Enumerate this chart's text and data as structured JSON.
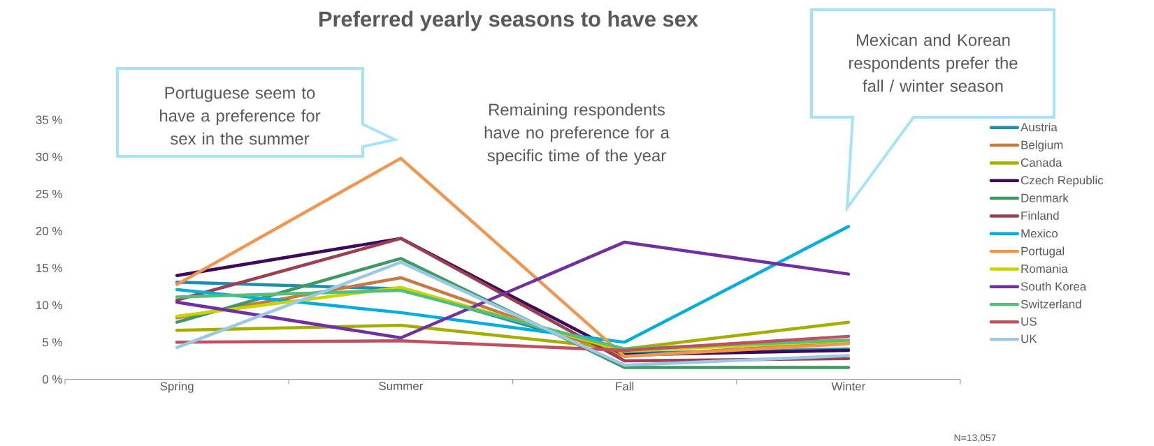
{
  "chart_data": {
    "type": "line",
    "title": "Preferred yearly seasons to have sex",
    "categories": [
      "Spring",
      "Summer",
      "Fall",
      "Winter"
    ],
    "ylim": [
      0,
      35
    ],
    "yticks": [
      {
        "value": 0,
        "label": "0 %"
      },
      {
        "value": 5,
        "label": "5 %"
      },
      {
        "value": 10,
        "label": "10 %"
      },
      {
        "value": 15,
        "label": "15 %"
      },
      {
        "value": 20,
        "label": "20 %"
      },
      {
        "value": 25,
        "label": "25 %"
      },
      {
        "value": 30,
        "label": "30 %"
      },
      {
        "value": 35,
        "label": "35 %"
      }
    ],
    "legend": "right",
    "grid": false,
    "marker": "none",
    "line_style": "solid",
    "annotations": [
      "Portuguese seem to have a preference for sex in the summer",
      "Remaining respondents have no preference for a specific time of the year",
      "Mexican and Korean respondents prefer the fall / winter season",
      "N=13,057"
    ],
    "series": [
      {
        "name": "Austria",
        "color": "#1f8fb0",
        "values": [
          13.1,
          12.2,
          3.5,
          4.1
        ]
      },
      {
        "name": "Belgium",
        "color": "#c87941",
        "values": [
          8.3,
          13.7,
          3.1,
          5.0
        ]
      },
      {
        "name": "Canada",
        "color": "#a5ad00",
        "values": [
          6.6,
          7.3,
          4.1,
          7.7
        ]
      },
      {
        "name": "Czech Republic",
        "color": "#3d0a5a",
        "values": [
          14.0,
          19.0,
          3.3,
          3.9
        ]
      },
      {
        "name": "Denmark",
        "color": "#3e9a63",
        "values": [
          7.7,
          16.3,
          1.6,
          1.6
        ]
      },
      {
        "name": "Finland",
        "color": "#9a4050",
        "values": [
          10.7,
          19.0,
          2.5,
          2.8
        ]
      },
      {
        "name": "Mexico",
        "color": "#00aedc",
        "values": [
          12.1,
          9.0,
          5.0,
          20.6
        ]
      },
      {
        "name": "Portugal",
        "color": "#f0964f",
        "values": [
          12.8,
          29.8,
          3.1,
          4.8
        ]
      },
      {
        "name": "Romania",
        "color": "#c9d400",
        "values": [
          8.5,
          12.4,
          3.8,
          5.2
        ]
      },
      {
        "name": "South Korea",
        "color": "#7030a0",
        "values": [
          10.4,
          5.6,
          18.5,
          14.2
        ]
      },
      {
        "name": "Switzerland",
        "color": "#55bf7a",
        "values": [
          11.1,
          12.0,
          4.1,
          5.3
        ]
      },
      {
        "name": "US",
        "color": "#c0505e",
        "values": [
          5.0,
          5.2,
          3.9,
          5.8
        ]
      },
      {
        "name": "UK",
        "color": "#9dc8e4",
        "values": [
          4.3,
          15.8,
          1.9,
          3.2
        ]
      }
    ]
  }
}
